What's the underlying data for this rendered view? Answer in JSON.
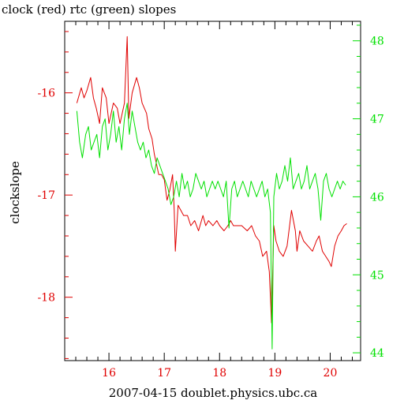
{
  "chart_data": {
    "type": "line",
    "title": "clock (red) rtc (green) slopes",
    "xlabel": "2007-04-15 doublet.physics.ubc.ca",
    "ylabel_left": "clockslope",
    "x_range": [
      15.2,
      20.55
    ],
    "y_left_range": [
      -18.62,
      -15.3
    ],
    "y_right_range": [
      43.9,
      48.25
    ],
    "x_ticks": [
      "16",
      "17",
      "18",
      "19",
      "20"
    ],
    "y_left_ticks": [
      "-16",
      "-17",
      "-18"
    ],
    "y_right_ticks": [
      "44",
      "45",
      "46",
      "47",
      "48"
    ],
    "grid": false,
    "colors": {
      "clock": "#e00000",
      "rtc": "#00e000",
      "frame": "#000000"
    },
    "series": [
      {
        "name": "clock",
        "axis": "left",
        "x": [
          15.42,
          15.5,
          15.55,
          15.6,
          15.67,
          15.72,
          15.77,
          15.83,
          15.88,
          15.95,
          16.0,
          16.08,
          16.15,
          16.2,
          16.28,
          16.33,
          16.36,
          16.42,
          16.5,
          16.55,
          16.6,
          16.68,
          16.72,
          16.78,
          16.82,
          16.9,
          16.95,
          17.0,
          17.05,
          17.1,
          17.15,
          17.18,
          17.2,
          17.25,
          17.3,
          17.35,
          17.42,
          17.48,
          17.55,
          17.62,
          17.7,
          17.75,
          17.8,
          17.88,
          17.95,
          18.0,
          18.08,
          18.15,
          18.2,
          18.25,
          18.32,
          18.4,
          18.5,
          18.58,
          18.65,
          18.72,
          18.78,
          18.85,
          18.9,
          18.94,
          18.98,
          19.02,
          19.08,
          19.15,
          19.22,
          19.3,
          19.37,
          19.4,
          19.45,
          19.52,
          19.6,
          19.68,
          19.75,
          19.8,
          19.86,
          19.92,
          19.98,
          20.02,
          20.08,
          20.14,
          20.2,
          20.25,
          20.3
        ],
        "y": [
          -16.1,
          -15.95,
          -16.05,
          -15.98,
          -15.85,
          -16.05,
          -16.15,
          -16.3,
          -15.95,
          -16.05,
          -16.3,
          -16.1,
          -16.15,
          -16.3,
          -16.1,
          -15.45,
          -16.25,
          -16.0,
          -15.85,
          -15.95,
          -16.1,
          -16.2,
          -16.35,
          -16.45,
          -16.6,
          -16.8,
          -16.8,
          -16.85,
          -17.05,
          -16.95,
          -16.8,
          -17.15,
          -17.55,
          -17.1,
          -17.15,
          -17.2,
          -17.2,
          -17.3,
          -17.25,
          -17.35,
          -17.2,
          -17.3,
          -17.25,
          -17.3,
          -17.25,
          -17.3,
          -17.35,
          -17.3,
          -17.25,
          -17.3,
          -17.3,
          -17.3,
          -17.35,
          -17.3,
          -17.4,
          -17.45,
          -17.6,
          -17.55,
          -17.75,
          -18.25,
          -17.3,
          -17.45,
          -17.55,
          -17.6,
          -17.5,
          -17.15,
          -17.35,
          -17.55,
          -17.35,
          -17.45,
          -17.5,
          -17.55,
          -17.45,
          -17.4,
          -17.55,
          -17.6,
          -17.65,
          -17.7,
          -17.5,
          -17.4,
          -17.35,
          -17.3,
          -17.28
        ]
      },
      {
        "name": "rtc",
        "axis": "right",
        "x": [
          15.42,
          15.47,
          15.52,
          15.58,
          15.63,
          15.68,
          15.73,
          15.78,
          15.83,
          15.88,
          15.93,
          15.98,
          16.03,
          16.08,
          16.13,
          16.18,
          16.23,
          16.28,
          16.33,
          16.37,
          16.42,
          16.47,
          16.52,
          16.57,
          16.62,
          16.67,
          16.72,
          16.77,
          16.82,
          16.87,
          16.92,
          16.97,
          17.02,
          17.07,
          17.12,
          17.17,
          17.22,
          17.27,
          17.32,
          17.37,
          17.42,
          17.47,
          17.52,
          17.57,
          17.62,
          17.67,
          17.72,
          17.77,
          17.82,
          17.87,
          17.92,
          17.97,
          18.02,
          18.07,
          18.12,
          18.17,
          18.22,
          18.27,
          18.32,
          18.37,
          18.42,
          18.47,
          18.52,
          18.57,
          18.62,
          18.67,
          18.72,
          18.77,
          18.82,
          18.87,
          18.92,
          18.95,
          18.98,
          19.03,
          19.08,
          19.13,
          19.18,
          19.23,
          19.28,
          19.33,
          19.38,
          19.43,
          19.48,
          19.53,
          19.58,
          19.63,
          19.68,
          19.73,
          19.78,
          19.83,
          19.88,
          19.93,
          19.98,
          20.03,
          20.08,
          20.13,
          20.18,
          20.23,
          20.28
        ],
        "y": [
          47.1,
          46.7,
          46.5,
          46.8,
          46.9,
          46.6,
          46.7,
          46.8,
          46.5,
          46.9,
          47.0,
          46.6,
          46.8,
          47.1,
          46.7,
          46.9,
          46.6,
          47.0,
          47.2,
          46.8,
          47.1,
          46.9,
          46.7,
          46.6,
          46.7,
          46.5,
          46.6,
          46.4,
          46.3,
          46.5,
          46.4,
          46.3,
          46.2,
          46.1,
          45.9,
          46.0,
          46.2,
          46.0,
          46.3,
          46.1,
          46.2,
          46.0,
          46.1,
          46.3,
          46.2,
          46.1,
          46.2,
          46.0,
          46.1,
          46.2,
          46.1,
          46.2,
          46.1,
          46.0,
          46.2,
          45.6,
          46.1,
          46.2,
          46.0,
          46.1,
          46.2,
          46.1,
          46.0,
          46.2,
          46.1,
          46.0,
          46.1,
          46.2,
          46.0,
          46.1,
          45.8,
          44.05,
          46.0,
          46.3,
          46.1,
          46.2,
          46.4,
          46.2,
          46.5,
          46.1,
          46.2,
          46.3,
          46.1,
          46.2,
          46.4,
          46.1,
          46.2,
          46.3,
          46.1,
          45.7,
          46.2,
          46.3,
          46.1,
          46.0,
          46.1,
          46.2,
          46.1,
          46.2,
          46.15
        ]
      }
    ]
  }
}
